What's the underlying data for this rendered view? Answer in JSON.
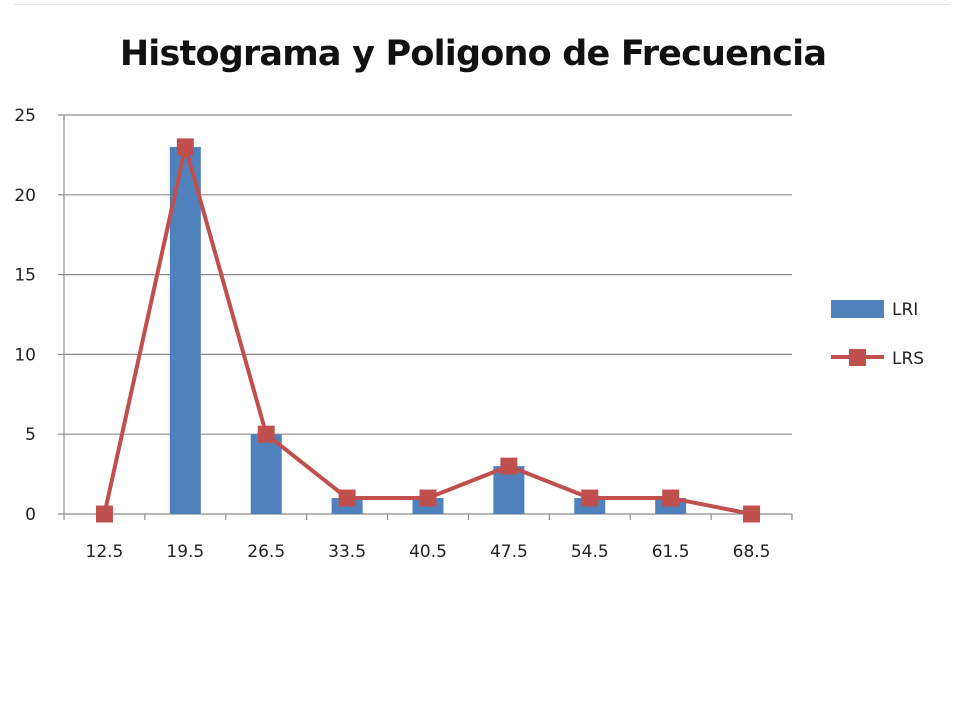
{
  "chart_data": {
    "type": "bar",
    "title": "Histograma y Poligono de Frecuencia",
    "xlabel": "",
    "ylabel": "",
    "categories": [
      "12.5",
      "19.5",
      "26.5",
      "33.5",
      "40.5",
      "47.5",
      "54.5",
      "61.5",
      "68.5"
    ],
    "yticks": [
      0,
      5,
      10,
      15,
      20,
      25
    ],
    "ylim": [
      0,
      25
    ],
    "grid": true,
    "legend_position": "right",
    "series": [
      {
        "name": "LRI",
        "type": "bar",
        "color": "#4F81BD",
        "values": [
          0,
          23,
          5,
          1,
          1,
          3,
          1,
          1,
          0
        ]
      },
      {
        "name": "LRS",
        "type": "line",
        "marker": "square",
        "color": "#C0504D",
        "values": [
          0,
          23,
          5,
          1,
          1,
          3,
          1,
          1,
          0
        ]
      }
    ]
  }
}
